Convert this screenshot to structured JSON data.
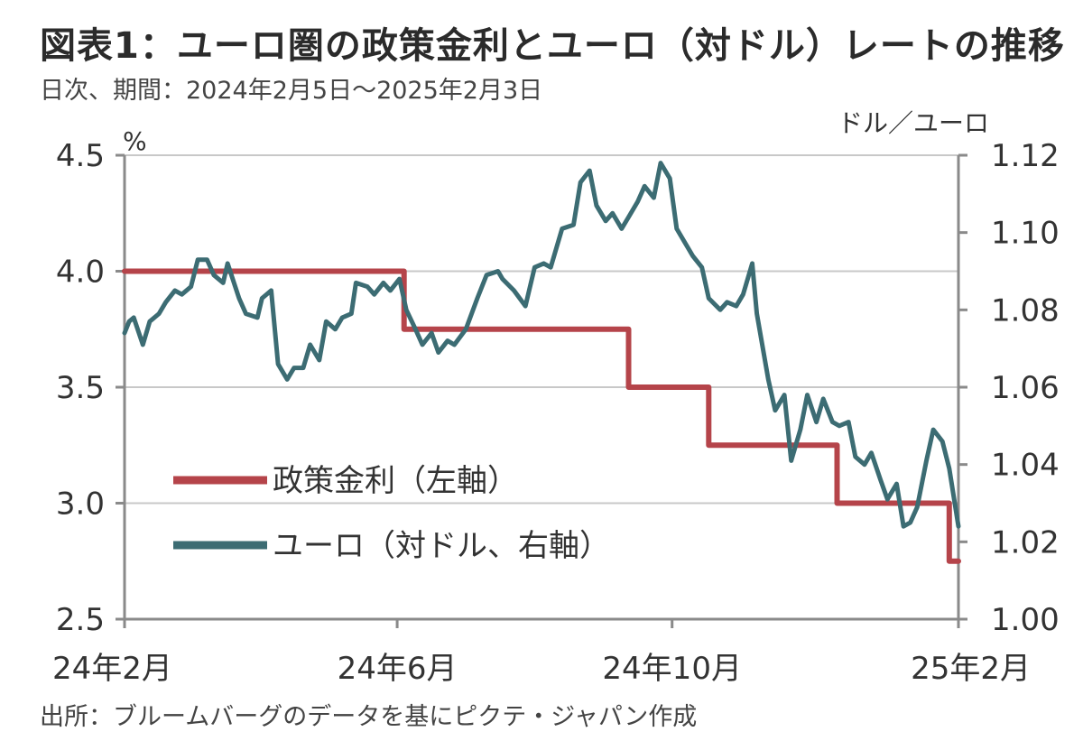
{
  "title": "図表1：ユーロ圏の政策金利とユーロ（対ドル）レートの推移",
  "subtitle": "日次、期間：2024年2月5日～2025年2月3日",
  "source": "出所：ブルームバーグのデータを基にピクテ・ジャパン作成",
  "chart_data": {
    "type": "line",
    "left_axis": {
      "unit": "%",
      "ticks": [
        "4.5",
        "4.0",
        "3.5",
        "3.0",
        "2.5"
      ],
      "ylim": [
        2.5,
        4.5
      ]
    },
    "right_axis": {
      "unit": "ドル／ユーロ",
      "ticks": [
        "1.12",
        "1.10",
        "1.08",
        "1.06",
        "1.04",
        "1.02",
        "1.00"
      ],
      "ylim": [
        1.0,
        1.12
      ]
    },
    "x_ticks": [
      {
        "label": "24年2月",
        "date": "2024-02-05"
      },
      {
        "label": "24年6月",
        "date": "2024-06-03"
      },
      {
        "label": "24年10月",
        "date": "2024-10-01"
      },
      {
        "label": "25年2月",
        "date": "2025-02-03"
      }
    ],
    "xlim": [
      "2024-02-05",
      "2025-02-03"
    ],
    "grid": "horizontal",
    "legend": "center-left",
    "colors": {
      "policy": "#b5444a",
      "eur": "#3c6c73",
      "grid": "#c8c8c8",
      "axis": "#8a8a8a"
    },
    "series": [
      {
        "name": "政策金利（左軸）",
        "axis": "left",
        "step": true,
        "points": [
          [
            "2024-02-05",
            4.0
          ],
          [
            "2024-06-06",
            4.0
          ],
          [
            "2024-06-06",
            3.75
          ],
          [
            "2024-09-12",
            3.75
          ],
          [
            "2024-09-12",
            3.5
          ],
          [
            "2024-10-17",
            3.5
          ],
          [
            "2024-10-17",
            3.25
          ],
          [
            "2024-12-12",
            3.25
          ],
          [
            "2024-12-12",
            3.0
          ],
          [
            "2025-01-30",
            3.0
          ],
          [
            "2025-01-30",
            2.75
          ],
          [
            "2025-02-03",
            2.75
          ]
        ]
      },
      {
        "name": "ユーロ（対ドル、右軸）",
        "axis": "right",
        "points": [
          [
            "2024-02-05",
            1.074
          ],
          [
            "2024-02-07",
            1.077
          ],
          [
            "2024-02-09",
            1.078
          ],
          [
            "2024-02-13",
            1.071
          ],
          [
            "2024-02-16",
            1.077
          ],
          [
            "2024-02-20",
            1.079
          ],
          [
            "2024-02-23",
            1.082
          ],
          [
            "2024-02-27",
            1.085
          ],
          [
            "2024-03-01",
            1.084
          ],
          [
            "2024-03-05",
            1.086
          ],
          [
            "2024-03-08",
            1.093
          ],
          [
            "2024-03-12",
            1.093
          ],
          [
            "2024-03-15",
            1.089
          ],
          [
            "2024-03-19",
            1.087
          ],
          [
            "2024-03-21",
            1.092
          ],
          [
            "2024-03-26",
            1.083
          ],
          [
            "2024-03-29",
            1.079
          ],
          [
            "2024-04-03",
            1.078
          ],
          [
            "2024-04-05",
            1.083
          ],
          [
            "2024-04-09",
            1.085
          ],
          [
            "2024-04-12",
            1.066
          ],
          [
            "2024-04-16",
            1.062
          ],
          [
            "2024-04-19",
            1.065
          ],
          [
            "2024-04-23",
            1.065
          ],
          [
            "2024-04-26",
            1.071
          ],
          [
            "2024-04-30",
            1.067
          ],
          [
            "2024-05-03",
            1.077
          ],
          [
            "2024-05-07",
            1.075
          ],
          [
            "2024-05-10",
            1.078
          ],
          [
            "2024-05-14",
            1.079
          ],
          [
            "2024-05-16",
            1.087
          ],
          [
            "2024-05-21",
            1.086
          ],
          [
            "2024-05-24",
            1.084
          ],
          [
            "2024-05-28",
            1.087
          ],
          [
            "2024-05-31",
            1.085
          ],
          [
            "2024-06-04",
            1.088
          ],
          [
            "2024-06-07",
            1.08
          ],
          [
            "2024-06-11",
            1.075
          ],
          [
            "2024-06-14",
            1.071
          ],
          [
            "2024-06-18",
            1.074
          ],
          [
            "2024-06-21",
            1.069
          ],
          [
            "2024-06-25",
            1.072
          ],
          [
            "2024-06-28",
            1.071
          ],
          [
            "2024-07-03",
            1.075
          ],
          [
            "2024-07-08",
            1.083
          ],
          [
            "2024-07-12",
            1.089
          ],
          [
            "2024-07-17",
            1.09
          ],
          [
            "2024-07-19",
            1.088
          ],
          [
            "2024-07-24",
            1.085
          ],
          [
            "2024-07-29",
            1.081
          ],
          [
            "2024-08-02",
            1.091
          ],
          [
            "2024-08-06",
            1.092
          ],
          [
            "2024-08-09",
            1.091
          ],
          [
            "2024-08-14",
            1.101
          ],
          [
            "2024-08-19",
            1.102
          ],
          [
            "2024-08-22",
            1.113
          ],
          [
            "2024-08-26",
            1.116
          ],
          [
            "2024-08-29",
            1.107
          ],
          [
            "2024-09-02",
            1.103
          ],
          [
            "2024-09-05",
            1.105
          ],
          [
            "2024-09-09",
            1.101
          ],
          [
            "2024-09-12",
            1.104
          ],
          [
            "2024-09-16",
            1.108
          ],
          [
            "2024-09-19",
            1.112
          ],
          [
            "2024-09-23",
            1.109
          ],
          [
            "2024-09-26",
            1.118
          ],
          [
            "2024-09-30",
            1.114
          ],
          [
            "2024-10-03",
            1.101
          ],
          [
            "2024-10-07",
            1.097
          ],
          [
            "2024-10-10",
            1.094
          ],
          [
            "2024-10-14",
            1.091
          ],
          [
            "2024-10-17",
            1.083
          ],
          [
            "2024-10-22",
            1.08
          ],
          [
            "2024-10-25",
            1.082
          ],
          [
            "2024-10-29",
            1.081
          ],
          [
            "2024-11-01",
            1.084
          ],
          [
            "2024-11-05",
            1.092
          ],
          [
            "2024-11-07",
            1.079
          ],
          [
            "2024-11-12",
            1.062
          ],
          [
            "2024-11-15",
            1.054
          ],
          [
            "2024-11-19",
            1.058
          ],
          [
            "2024-11-22",
            1.041
          ],
          [
            "2024-11-26",
            1.049
          ],
          [
            "2024-11-29",
            1.058
          ],
          [
            "2024-12-03",
            1.051
          ],
          [
            "2024-12-06",
            1.057
          ],
          [
            "2024-12-10",
            1.051
          ],
          [
            "2024-12-13",
            1.05
          ],
          [
            "2024-12-17",
            1.051
          ],
          [
            "2024-12-20",
            1.042
          ],
          [
            "2024-12-24",
            1.04
          ],
          [
            "2024-12-27",
            1.043
          ],
          [
            "2024-12-31",
            1.036
          ],
          [
            "2025-01-03",
            1.031
          ],
          [
            "2025-01-07",
            1.035
          ],
          [
            "2025-01-10",
            1.024
          ],
          [
            "2025-01-13",
            1.025
          ],
          [
            "2025-01-16",
            1.029
          ],
          [
            "2025-01-20",
            1.041
          ],
          [
            "2025-01-23",
            1.049
          ],
          [
            "2025-01-27",
            1.046
          ],
          [
            "2025-01-30",
            1.039
          ],
          [
            "2025-02-03",
            1.024
          ]
        ]
      }
    ]
  }
}
